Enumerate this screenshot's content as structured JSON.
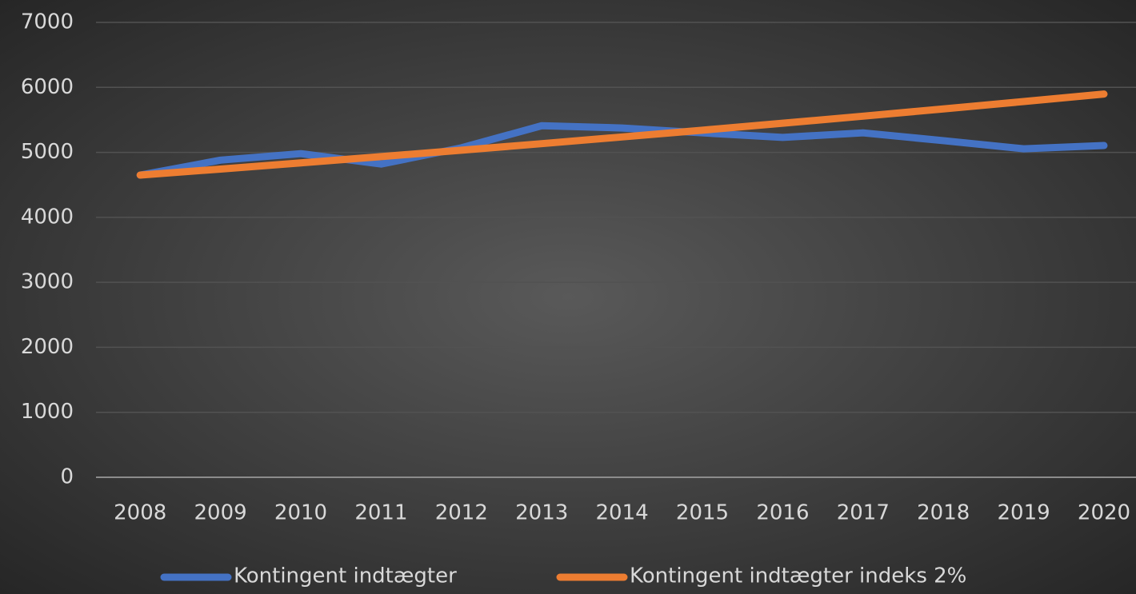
{
  "chart_data": {
    "type": "line",
    "categories": [
      "2008",
      "2009",
      "2010",
      "2011",
      "2012",
      "2013",
      "2014",
      "2015",
      "2016",
      "2017",
      "2018",
      "2019",
      "2020"
    ],
    "series": [
      {
        "name": "Kontingent indtægter",
        "color": "#4472c4",
        "values": [
          4650,
          4880,
          4980,
          4820,
          5070,
          5410,
          5375,
          5300,
          5230,
          5300,
          5180,
          5055,
          5105
        ]
      },
      {
        "name": "Kontingent indtægter indeks 2%",
        "color": "#ed7d31",
        "values": [
          4650,
          4743,
          4838,
          4935,
          5033,
          5134,
          5237,
          5341,
          5448,
          5557,
          5668,
          5782,
          5897
        ]
      }
    ],
    "ylim": [
      0,
      7000
    ],
    "yticks": [
      0,
      1000,
      2000,
      3000,
      4000,
      5000,
      6000,
      7000
    ],
    "grid": true,
    "legend": "bottom"
  }
}
